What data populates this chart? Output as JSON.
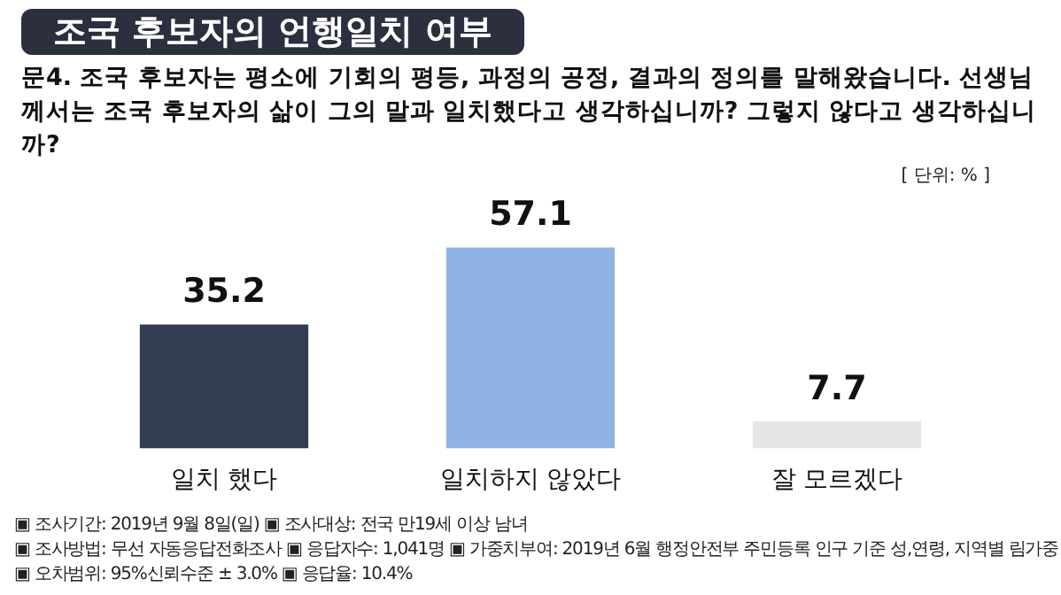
{
  "chart_data": {
    "type": "bar",
    "title": "조국 후보자의 언행일치 여부",
    "subtitle": "문4. 조국 후보자는 평소에 기회의 평등, 과정의 공정, 결과의 정의를 말해왔습니다. 선생님께서는 조국 후보자의 삶이 그의 말과 일치했다고 생각하십니까? 그렇지 않다고 생각하십니까?",
    "categories": [
      "일치 했다",
      "일치하지 않았다",
      "잘 모르겠다"
    ],
    "values": [
      35.2,
      57.1,
      7.7
    ],
    "colors": [
      "#323c52",
      "#8fb4e3",
      "#e6e6e6"
    ],
    "data_labels": true,
    "grid": false,
    "legend": false,
    "tick_labels": "x",
    "annotations": [
      "[ 단위: % ]",
      "▣ 조사기간: 2019년 9월 8일(일) ▣ 조사대상: 전국 만19세 이상 남녀",
      "▣ 조사방법: 무선 자동응답전화조사 ▣ 응답자수: 1,041명 ▣ 가중치부여: 2019년 6월 행정안전부 주민등록 인구 기준 성,연령, 지역별 림가중",
      "▣ 오차범위: 95%신뢰수준 ± 3.0% ▣ 응답율: 10.4%"
    ]
  }
}
